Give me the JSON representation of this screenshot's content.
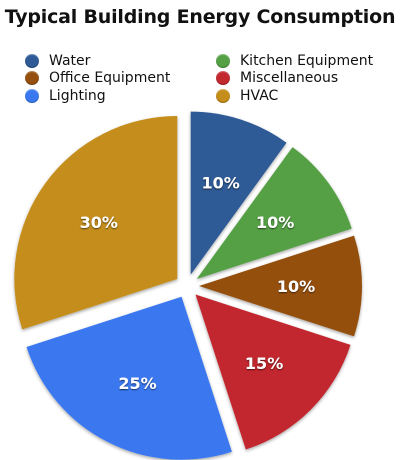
{
  "chart_data": {
    "type": "pie",
    "title": "Typical Building Energy Consumption",
    "series": [
      {
        "name": "Water",
        "value": 10,
        "label": "10%",
        "color": "#2e5a96"
      },
      {
        "name": "Kitchen Equipment",
        "value": 10,
        "label": "10%",
        "color": "#55a045"
      },
      {
        "name": "Office Equipment",
        "value": 10,
        "label": "10%",
        "color": "#95500f"
      },
      {
        "name": "Miscellaneous",
        "value": 15,
        "label": "15%",
        "color": "#c2282e"
      },
      {
        "name": "Lighting",
        "value": 25,
        "label": "25%",
        "color": "#3a78f0"
      },
      {
        "name": "HVAC",
        "value": 30,
        "label": "30%",
        "color": "#c58e1a"
      }
    ],
    "legend_placement": "top",
    "exploded": true
  }
}
